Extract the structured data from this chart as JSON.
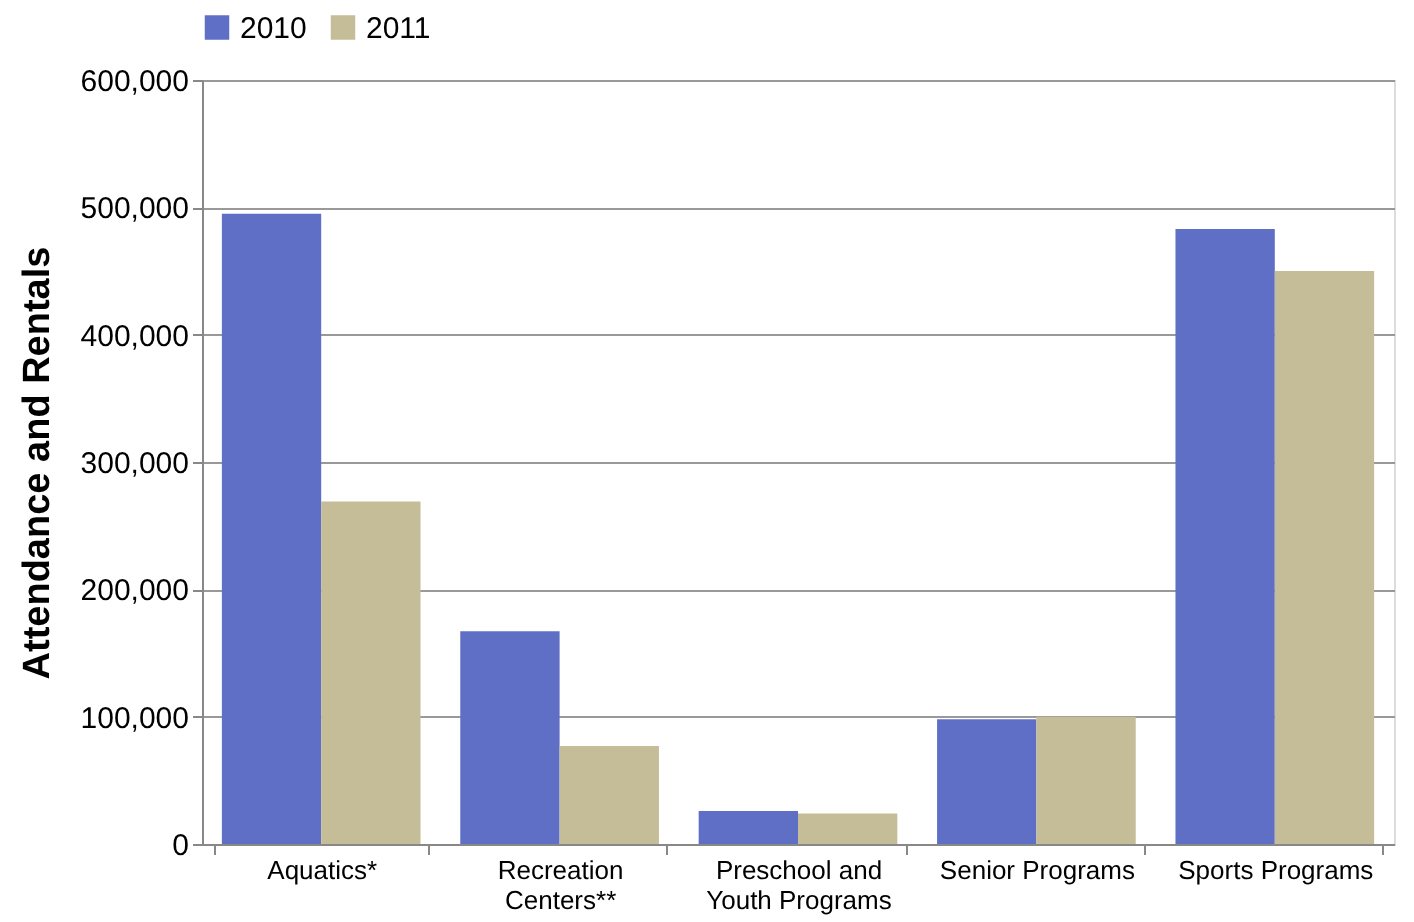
{
  "chart_data": {
    "type": "bar",
    "ylabel": "Attendance and Rentals",
    "categories": [
      "Aquatics*",
      "Recreation Centers**",
      "Preschool and Youth Programs",
      "Senior Programs",
      "Sports Programs"
    ],
    "series": [
      {
        "name": "2010",
        "color": "#5f6fc6",
        "values": [
          495000,
          167000,
          26000,
          98000,
          483000
        ]
      },
      {
        "name": "2011",
        "color": "#c4bd97",
        "values": [
          269000,
          77000,
          24000,
          100000,
          450000
        ]
      }
    ],
    "ylim": [
      0,
      600000
    ],
    "yticks": [
      0,
      {
        "value": 100000,
        "label": "100,000"
      },
      {
        "value": 200000,
        "label": "200,000"
      },
      {
        "value": 300000,
        "label": "300,000"
      },
      {
        "value": 400000,
        "label": "400,000"
      },
      {
        "value": 500000,
        "label": "500,000"
      },
      {
        "value": 600000,
        "label": "600,000"
      }
    ],
    "grid": "y",
    "legend": "top"
  }
}
